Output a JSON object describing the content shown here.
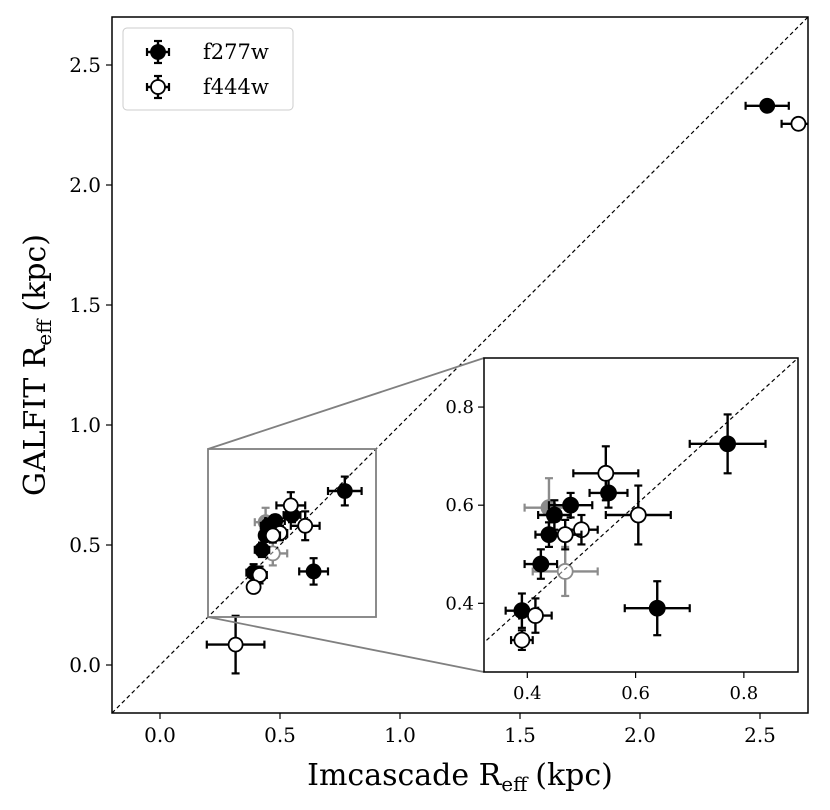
{
  "chart_data": {
    "type": "scatter",
    "xlabel_main": "Imcascade R",
    "xlabel_sub": "eff",
    "xlabel_unit": "(kpc)",
    "ylabel_main": "GALFIT R",
    "ylabel_sub": "eff",
    "ylabel_unit": "(kpc)",
    "xlim": [
      -0.2,
      2.7
    ],
    "ylim": [
      -0.2,
      2.7
    ],
    "xticks": [
      "0.0",
      "0.5",
      "1.0",
      "1.5",
      "2.0",
      "2.5"
    ],
    "yticks": [
      "0.0",
      "0.5",
      "1.0",
      "1.5",
      "2.0",
      "2.5"
    ],
    "one_to_one_line": true,
    "legend": {
      "position": "top-left",
      "entries": [
        {
          "label": "f277w",
          "marker": "filled-circle",
          "color": "#000000"
        },
        {
          "label": "f444w",
          "marker": "open-circle",
          "color": "#000000"
        }
      ]
    },
    "series": [
      {
        "name": "f277w",
        "points": [
          {
            "x": 2.53,
            "y": 2.33,
            "xerr": 0.09,
            "yerr": 0.0
          },
          {
            "x": 0.77,
            "y": 0.725,
            "xerr": 0.07,
            "yerr": 0.06
          },
          {
            "x": 0.64,
            "y": 0.39,
            "xerr": 0.06,
            "yerr": 0.055
          },
          {
            "x": 0.55,
            "y": 0.625,
            "xerr": 0.035,
            "yerr": 0.03
          },
          {
            "x": 0.48,
            "y": 0.6,
            "xerr": 0.04,
            "yerr": 0.025
          },
          {
            "x": 0.45,
            "y": 0.58,
            "xerr": 0.03,
            "yerr": 0.03
          },
          {
            "x": 0.44,
            "y": 0.54,
            "xerr": 0.025,
            "yerr": 0.025
          },
          {
            "x": 0.425,
            "y": 0.48,
            "xerr": 0.03,
            "yerr": 0.03
          },
          {
            "x": 0.39,
            "y": 0.385,
            "xerr": 0.03,
            "yerr": 0.035
          }
        ]
      },
      {
        "name": "f444w",
        "points": [
          {
            "x": 2.66,
            "y": 2.255,
            "xerr": 0.07,
            "yerr": 0.0
          },
          {
            "x": 0.315,
            "y": 0.085,
            "xerr": 0.12,
            "yerr": 0.12
          },
          {
            "x": 0.605,
            "y": 0.58,
            "xerr": 0.06,
            "yerr": 0.06
          },
          {
            "x": 0.545,
            "y": 0.665,
            "xerr": 0.06,
            "yerr": 0.055
          },
          {
            "x": 0.5,
            "y": 0.55,
            "xerr": 0.03,
            "yerr": 0.03
          },
          {
            "x": 0.47,
            "y": 0.54,
            "xerr": 0.03,
            "yerr": 0.03
          },
          {
            "x": 0.415,
            "y": 0.375,
            "xerr": 0.03,
            "yerr": 0.035
          },
          {
            "x": 0.39,
            "y": 0.325,
            "xerr": 0.02,
            "yerr": 0.02
          }
        ]
      },
      {
        "name": "f277w-faded",
        "points": [
          {
            "x": 0.44,
            "y": 0.595,
            "xerr": 0.045,
            "yerr": 0.06
          }
        ]
      },
      {
        "name": "f444w-faded",
        "points": [
          {
            "x": 0.47,
            "y": 0.465,
            "xerr": 0.06,
            "yerr": 0.05
          }
        ]
      }
    ],
    "inset": {
      "xlim": [
        0.32,
        0.9
      ],
      "ylim": [
        0.26,
        0.9
      ],
      "xticks": [
        "0.4",
        "0.6",
        "0.8"
      ],
      "yticks": [
        "0.4",
        "0.6",
        "0.8"
      ],
      "zoom_region": {
        "x": [
          0.2,
          0.9
        ],
        "y": [
          0.2,
          0.9
        ]
      }
    }
  }
}
